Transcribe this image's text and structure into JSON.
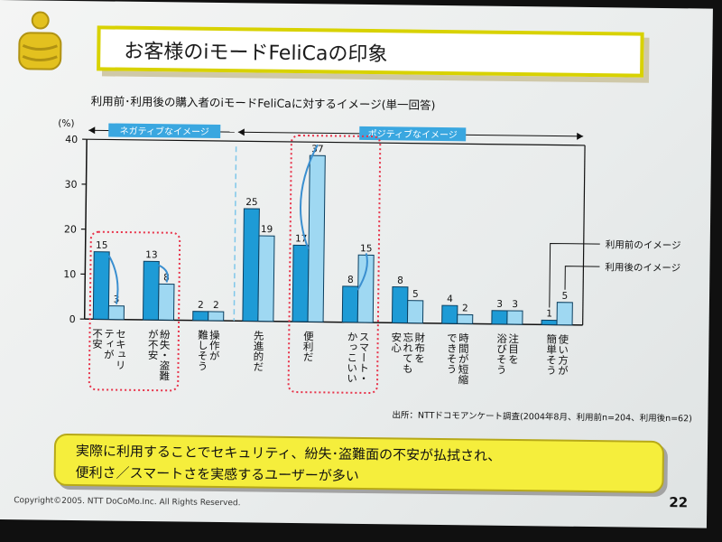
{
  "title": "お客様のiモードFeliCaの印象",
  "subtitle": "利用前･利用後の購入者のiモードFeliCaに対するイメージ(単一回答)",
  "source": "出所：NTTドコモアンケート調査(2004年8月、利用前n=204、利用後n=62)",
  "summary": {
    "line1": "実際に利用することでセキュリティ、紛失･盗難面の不安が払拭され、",
    "line2": "便利さ／スマートさを実感するユーザーが多い"
  },
  "footer": {
    "copyright": "Copyright©2005.  NTT DoCoMo.Inc. All Rights Reserved.",
    "page_number": "22"
  },
  "colors": {
    "before": "#1e9bd6",
    "after": "#9fd8f2",
    "highlight_border": "#e8334a",
    "label_bar": "#3aa7e0",
    "title_border": "#d8d200",
    "summary_fill": "#f5ee3c"
  },
  "chart_data": {
    "type": "bar",
    "ylabel": "(%)",
    "ylim": [
      0,
      40
    ],
    "yticks": [
      "0",
      "10",
      "20",
      "30",
      "40"
    ],
    "negative_label": "ネガティブなイメージ",
    "positive_label": "ポジティブなイメージ",
    "categories": [
      "セキュリティが不安",
      "紛失・盗難が不安",
      "操作が難しそう",
      "先進的だ",
      "便利だ",
      "スマート・かっこいい",
      "財布を忘れても安心",
      "時間が短縮できそう",
      "注目を浴びそう",
      "使い方が簡単そう"
    ],
    "category_lines": [
      [
        "セキュリ",
        "ティが",
        "不安"
      ],
      [
        "紛失・盗難",
        "が不安"
      ],
      [
        "操作が",
        "難しそう"
      ],
      [
        "先進的だ"
      ],
      [
        "便利だ"
      ],
      [
        "スマート・",
        "かっこいい"
      ],
      [
        "財布を",
        "忘れても",
        "安心"
      ],
      [
        "時間が短縮",
        "できそう"
      ],
      [
        "注目を",
        "浴びそう"
      ],
      [
        "使い方が",
        "簡単そう"
      ]
    ],
    "series": [
      {
        "name": "利用前のイメージ",
        "values": [
          15,
          13,
          2,
          25,
          17,
          8,
          8,
          4,
          3,
          1
        ]
      },
      {
        "name": "利用後のイメージ",
        "values": [
          3,
          8,
          2,
          19,
          37,
          15,
          5,
          2,
          3,
          5
        ]
      }
    ],
    "highlighted_groups": [
      [
        0,
        1
      ],
      [
        4,
        5
      ]
    ],
    "grid": false
  }
}
